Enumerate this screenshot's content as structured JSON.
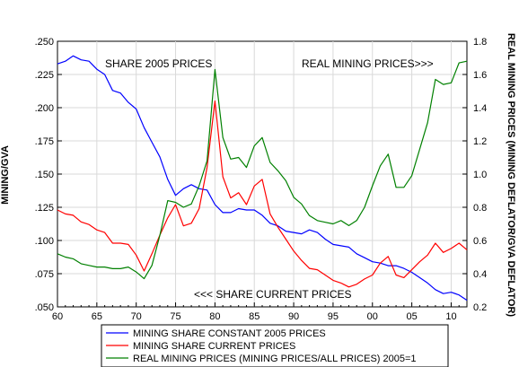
{
  "chart_data": {
    "type": "line",
    "left_axis_title": "MINING/GVA",
    "right_axis_title": "REAL MINING PRICES (MINING DEFLATOR/GVA DEFLATOR)",
    "xlim": [
      1960,
      2012
    ],
    "ylim_left": [
      0.05,
      0.25
    ],
    "ylim_right": [
      0.2,
      1.8
    ],
    "x_ticks": [
      1960,
      1965,
      1970,
      1975,
      1980,
      1985,
      1990,
      1995,
      2000,
      2005,
      2010
    ],
    "x_tick_labels": [
      "60",
      "65",
      "70",
      "75",
      "80",
      "85",
      "90",
      "95",
      "00",
      "05",
      "10"
    ],
    "y_left_ticks": [
      0.05,
      0.075,
      0.1,
      0.125,
      0.15,
      0.175,
      0.2,
      0.225,
      0.25
    ],
    "y_left_tick_labels": [
      ".050",
      ".075",
      ".100",
      ".125",
      ".150",
      ".175",
      ".200",
      ".225",
      ".250"
    ],
    "y_right_ticks": [
      0.2,
      0.4,
      0.6,
      0.8,
      1.0,
      1.2,
      1.4,
      1.6,
      1.8
    ],
    "y_right_tick_labels": [
      "0.2",
      "0.4",
      "0.6",
      "0.8",
      "1.0",
      "1.2",
      "1.4",
      "1.6",
      "1.8"
    ],
    "annotations": {
      "share_2005": "SHARE 2005 PRICES",
      "real_mining": "REAL MINING PRICES>>>",
      "share_current": "<<< SHARE CURRENT PRICES"
    },
    "legend_position": "bottom",
    "x": [
      1960,
      1961,
      1962,
      1963,
      1964,
      1965,
      1966,
      1967,
      1968,
      1969,
      1970,
      1971,
      1972,
      1973,
      1974,
      1975,
      1976,
      1977,
      1978,
      1979,
      1980,
      1981,
      1982,
      1983,
      1984,
      1985,
      1986,
      1987,
      1988,
      1989,
      1990,
      1991,
      1992,
      1993,
      1994,
      1995,
      1996,
      1997,
      1998,
      1999,
      2000,
      2001,
      2002,
      2003,
      2004,
      2005,
      2006,
      2007,
      2008,
      2009,
      2010,
      2011,
      2012
    ],
    "series": [
      {
        "name": "MINING SHARE CONSTANT 2005 PRICES",
        "axis": "left",
        "color": "#0000ff",
        "values": [
          0.233,
          0.235,
          0.239,
          0.236,
          0.235,
          0.229,
          0.225,
          0.213,
          0.211,
          0.204,
          0.199,
          0.185,
          0.174,
          0.163,
          0.146,
          0.134,
          0.139,
          0.142,
          0.139,
          0.138,
          0.127,
          0.121,
          0.121,
          0.124,
          0.123,
          0.123,
          0.119,
          0.113,
          0.111,
          0.107,
          0.106,
          0.105,
          0.108,
          0.106,
          0.101,
          0.097,
          0.096,
          0.095,
          0.09,
          0.087,
          0.084,
          0.083,
          0.081,
          0.081,
          0.079,
          0.076,
          0.072,
          0.068,
          0.063,
          0.06,
          0.061,
          0.059,
          0.055
        ]
      },
      {
        "name": "MINING SHARE CURRENT PRICES",
        "axis": "left",
        "color": "#ff0000",
        "values": [
          0.123,
          0.12,
          0.119,
          0.114,
          0.112,
          0.108,
          0.106,
          0.098,
          0.098,
          0.097,
          0.089,
          0.077,
          0.09,
          0.104,
          0.117,
          0.127,
          0.111,
          0.113,
          0.124,
          0.155,
          0.205,
          0.148,
          0.132,
          0.136,
          0.127,
          0.141,
          0.146,
          0.12,
          0.11,
          0.101,
          0.092,
          0.085,
          0.079,
          0.078,
          0.074,
          0.07,
          0.068,
          0.065,
          0.067,
          0.071,
          0.074,
          0.083,
          0.088,
          0.074,
          0.072,
          0.078,
          0.084,
          0.089,
          0.098,
          0.091,
          0.094,
          0.098,
          0.093
        ]
      },
      {
        "name": "REAL MINING PRICES (MINING PRICES/ALL PRICES) 2005=1",
        "axis": "right",
        "color": "#008000",
        "values": [
          0.52,
          0.5,
          0.49,
          0.46,
          0.45,
          0.44,
          0.44,
          0.43,
          0.43,
          0.44,
          0.41,
          0.37,
          0.45,
          0.63,
          0.84,
          0.83,
          0.8,
          0.82,
          0.93,
          1.08,
          1.63,
          1.22,
          1.09,
          1.1,
          1.04,
          1.17,
          1.22,
          1.07,
          1.02,
          0.96,
          0.86,
          0.82,
          0.75,
          0.72,
          0.71,
          0.7,
          0.72,
          0.69,
          0.72,
          0.8,
          0.93,
          1.05,
          1.12,
          0.92,
          0.92,
          0.99,
          1.15,
          1.31,
          1.57,
          1.54,
          1.55,
          1.67,
          1.68
        ]
      }
    ]
  }
}
